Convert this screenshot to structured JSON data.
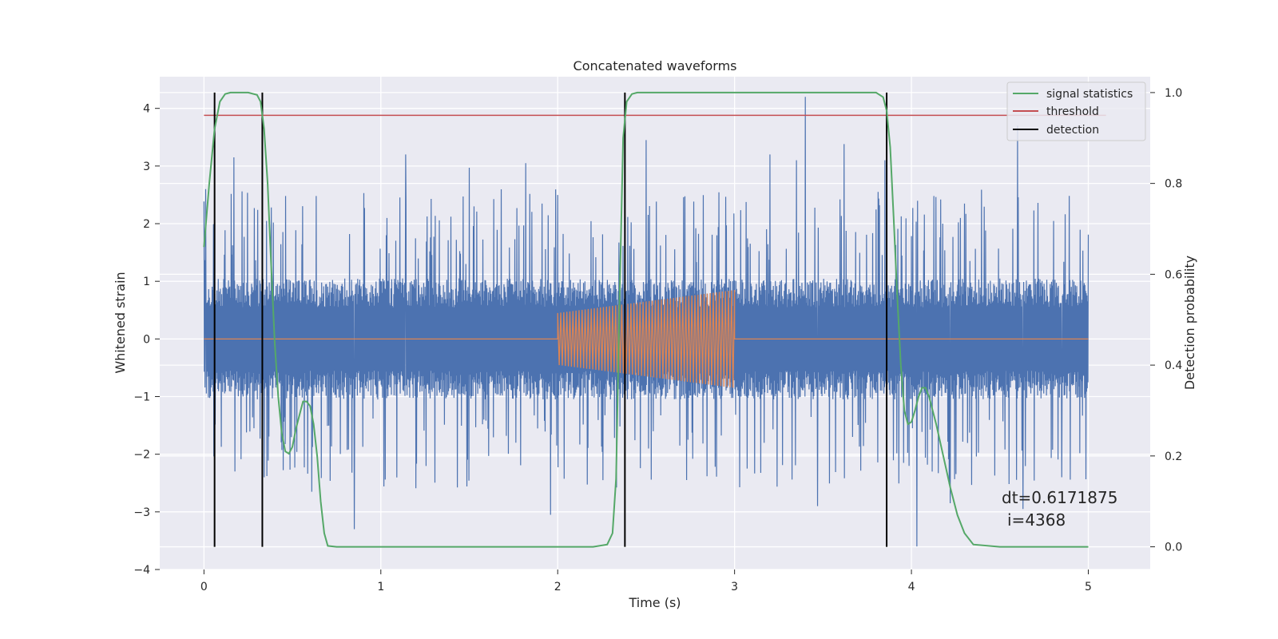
{
  "chart_data": {
    "type": "line",
    "title": "Concatenated waveforms",
    "xlabel": "Time (s)",
    "ylabel": "Whitened strain",
    "y2label": "Detection probability",
    "xlim": [
      -0.25,
      5.35
    ],
    "ylim": [
      -4.0,
      4.55
    ],
    "y2lim": [
      -0.05,
      1.035
    ],
    "xticks": [
      0,
      1,
      2,
      3,
      4,
      5
    ],
    "xtick_labels": [
      "0",
      "1",
      "2",
      "3",
      "4",
      "5"
    ],
    "yticks": [
      -4,
      -3,
      -2,
      -1,
      0,
      1,
      2,
      3,
      4
    ],
    "ytick_labels": [
      "−4",
      "−3",
      "−2",
      "−1",
      "0",
      "1",
      "2",
      "3",
      "4"
    ],
    "y2ticks": [
      0.0,
      0.2,
      0.4,
      0.6,
      0.8,
      1.0
    ],
    "y2tick_labels": [
      "0.0",
      "0.2",
      "0.4",
      "0.6",
      "0.8",
      "1.0"
    ],
    "grid": true,
    "legend_position": "top-right",
    "colors": {
      "background": "#eaeaf2",
      "noise": "#4c72b0",
      "injection": "#dd8452",
      "signal_statistics": "#55a868",
      "threshold": "#c44e52",
      "detection": "#000000"
    },
    "series": [
      {
        "name": "signal statistics",
        "axis": "right",
        "x": [
          0.0,
          0.03,
          0.06,
          0.09,
          0.12,
          0.15,
          0.2,
          0.25,
          0.3,
          0.32,
          0.34,
          0.36,
          0.38,
          0.4,
          0.42,
          0.44,
          0.46,
          0.48,
          0.5,
          0.52,
          0.54,
          0.56,
          0.58,
          0.6,
          0.62,
          0.64,
          0.66,
          0.68,
          0.7,
          0.75,
          1.0,
          1.5,
          2.0,
          2.2,
          2.28,
          2.31,
          2.33,
          2.35,
          2.37,
          2.39,
          2.42,
          2.45,
          2.5,
          3.0,
          3.5,
          3.8,
          3.84,
          3.86,
          3.88,
          3.9,
          3.92,
          3.94,
          3.96,
          3.98,
          4.0,
          4.02,
          4.04,
          4.06,
          4.08,
          4.1,
          4.14,
          4.18,
          4.22,
          4.26,
          4.3,
          4.35,
          4.5,
          5.0
        ],
        "values": [
          0.66,
          0.8,
          0.92,
          0.98,
          0.997,
          1.0,
          1.0,
          1.0,
          0.995,
          0.98,
          0.92,
          0.8,
          0.62,
          0.45,
          0.33,
          0.25,
          0.21,
          0.205,
          0.22,
          0.26,
          0.29,
          0.32,
          0.32,
          0.31,
          0.27,
          0.2,
          0.1,
          0.03,
          0.002,
          0.0,
          0.0,
          0.0,
          0.0,
          0.0,
          0.005,
          0.03,
          0.15,
          0.55,
          0.9,
          0.98,
          0.997,
          1.0,
          1.0,
          1.0,
          1.0,
          1.0,
          0.99,
          0.96,
          0.88,
          0.72,
          0.55,
          0.4,
          0.3,
          0.27,
          0.275,
          0.3,
          0.33,
          0.35,
          0.35,
          0.33,
          0.27,
          0.2,
          0.13,
          0.07,
          0.03,
          0.005,
          0.0,
          0.0
        ]
      },
      {
        "name": "threshold",
        "axis": "right",
        "x": [
          0.0,
          5.1
        ],
        "values": [
          0.95,
          0.95
        ]
      },
      {
        "name": "detection",
        "axis": "right",
        "type": "vertical-lines",
        "x": [
          0.06,
          0.33,
          2.38,
          3.86
        ],
        "range": [
          0.0,
          1.0
        ]
      }
    ],
    "noise": {
      "axis": "left",
      "x_range": [
        0.0,
        5.0
      ],
      "band": 1.05,
      "typical_peak": 2.6,
      "spikes": [
        {
          "x": 0.01,
          "y": 2.6
        },
        {
          "x": 0.17,
          "y": 3.15
        },
        {
          "x": 0.34,
          "y": -2.4
        },
        {
          "x": 0.61,
          "y": -2.65
        },
        {
          "x": 0.85,
          "y": -3.3
        },
        {
          "x": 1.14,
          "y": 3.2
        },
        {
          "x": 1.5,
          "y": 2.97
        },
        {
          "x": 1.82,
          "y": 3.05
        },
        {
          "x": 1.96,
          "y": -3.05
        },
        {
          "x": 2.5,
          "y": 3.45
        },
        {
          "x": 3.2,
          "y": 3.2
        },
        {
          "x": 3.35,
          "y": 3.1
        },
        {
          "x": 3.4,
          "y": 4.2
        },
        {
          "x": 3.47,
          "y": -2.9
        },
        {
          "x": 3.62,
          "y": 3.38
        },
        {
          "x": 3.85,
          "y": 3.1
        },
        {
          "x": 4.03,
          "y": -3.6
        },
        {
          "x": 4.22,
          "y": -2.85
        },
        {
          "x": 4.6,
          "y": 3.7
        },
        {
          "x": 4.63,
          "y": -2.95
        },
        {
          "x": 4.85,
          "y": -2.4
        }
      ]
    },
    "injection": {
      "axis": "left",
      "x_range": [
        2.0,
        3.0
      ],
      "amplitude_start": 0.45,
      "amplitude_end": 0.85,
      "cycles": 58
    },
    "annotations": [
      "dt=0.6171875",
      "i=4368"
    ]
  }
}
